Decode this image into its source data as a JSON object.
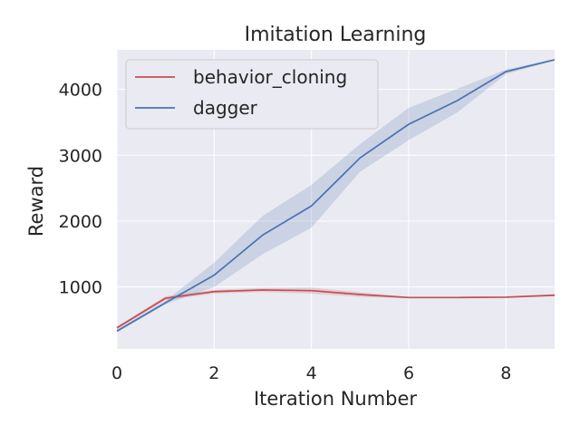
{
  "chart_data": {
    "type": "line",
    "title": "Imitation Learning",
    "xlabel": "Iteration Number",
    "ylabel": "Reward",
    "xlim": [
      0,
      9
    ],
    "ylim": [
      60,
      4600
    ],
    "xticks": [
      0,
      2,
      4,
      6,
      8
    ],
    "yticks": [
      1000,
      2000,
      3000,
      4000
    ],
    "grid": true,
    "legend_position": "top-left",
    "x": [
      0,
      1,
      2,
      3,
      4,
      5,
      6,
      7,
      8,
      9
    ],
    "series": [
      {
        "name": "behavior_cloning",
        "color": "#c44e52",
        "values": [
          380,
          830,
          930,
          955,
          945,
          885,
          840,
          840,
          845,
          875
        ],
        "lower": [
          360,
          800,
          900,
          925,
          900,
          850,
          830,
          830,
          835,
          860
        ],
        "upper": [
          400,
          860,
          955,
          985,
          990,
          920,
          850,
          850,
          860,
          890
        ]
      },
      {
        "name": "dagger",
        "color": "#4c72b0",
        "values": [
          330,
          760,
          1180,
          1790,
          2230,
          2960,
          3470,
          3830,
          4270,
          4450
        ],
        "lower": [
          310,
          740,
          1000,
          1500,
          1900,
          2750,
          3230,
          3650,
          4230,
          4440
        ],
        "upper": [
          360,
          790,
          1370,
          2080,
          2550,
          3170,
          3720,
          4010,
          4300,
          4460
        ]
      }
    ]
  }
}
